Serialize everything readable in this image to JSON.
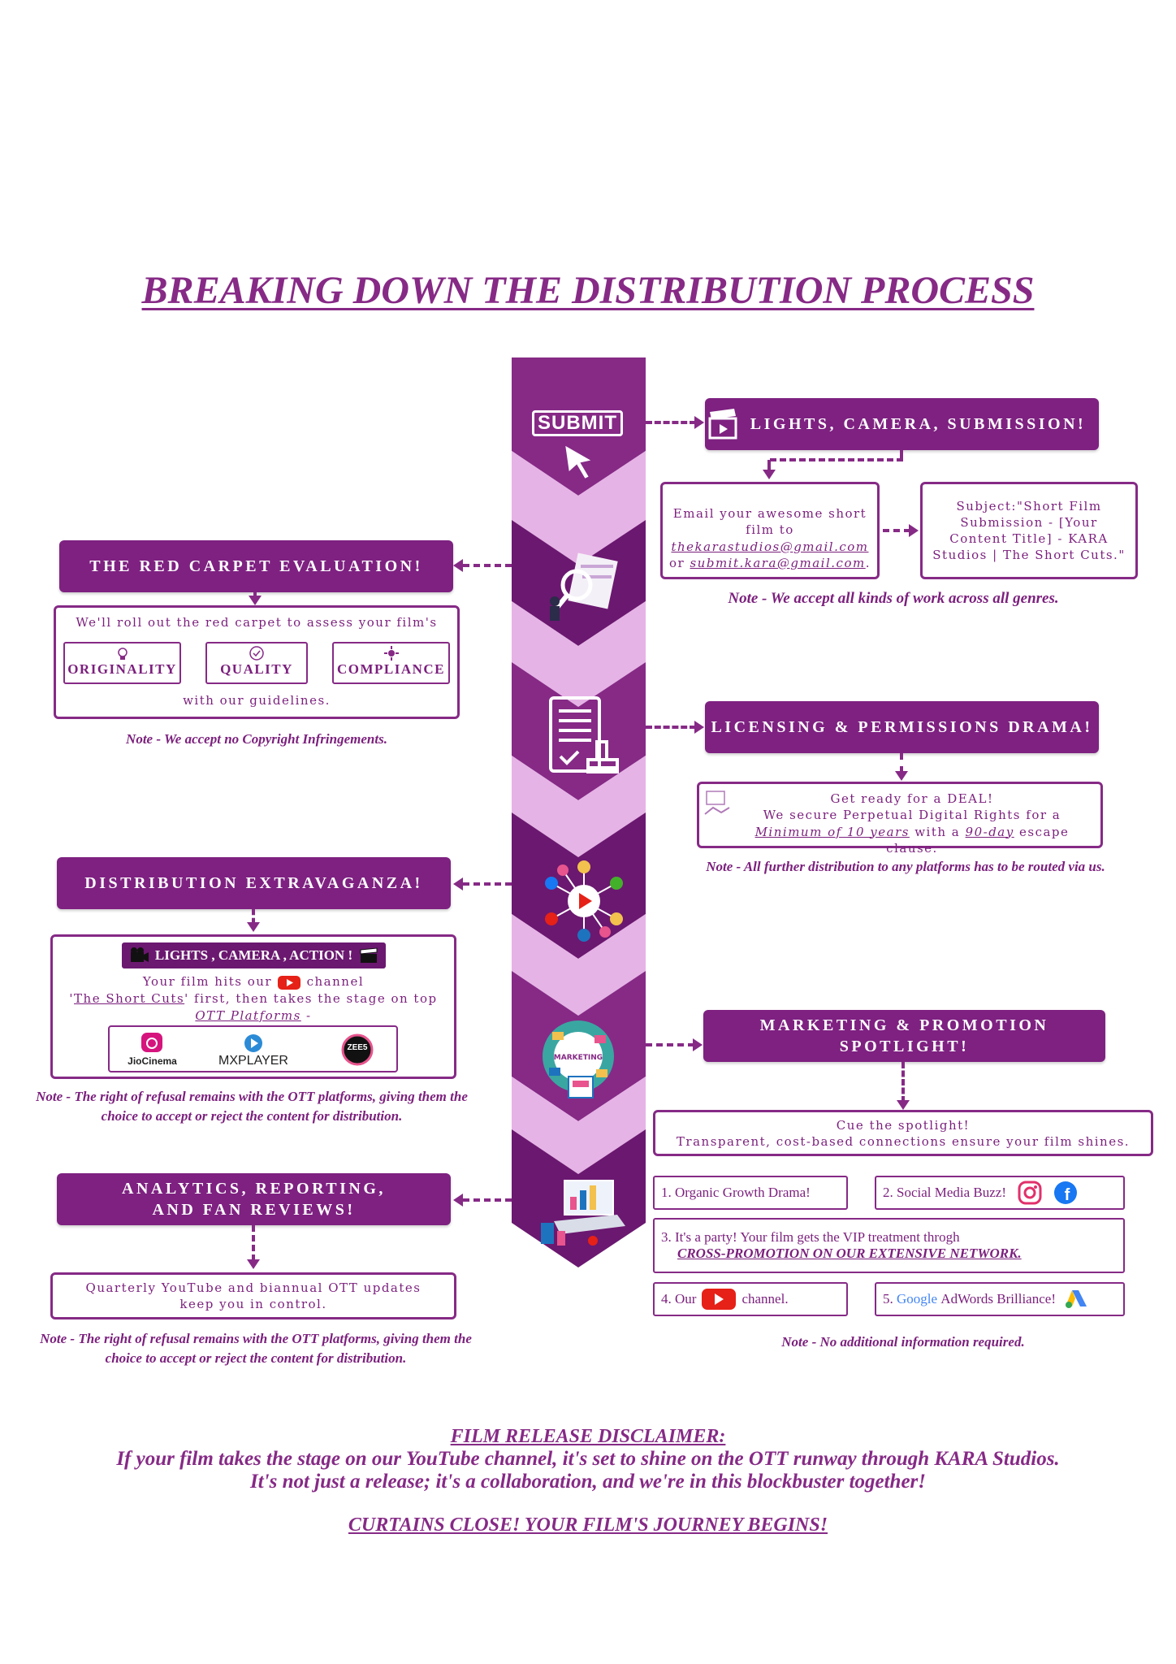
{
  "title": "BREAKING DOWN THE DISTRIBUTION PROCESS",
  "submit_label": "SUBMIT",
  "submission": {
    "header": "LIGHTS, CAMERA, SUBMISSION!",
    "email_line1": "Email your awesome short film to",
    "email1": "thekarastudios@gmail.com",
    "email_or": "or",
    "email2": "submit.kara@gmail.com",
    "email_end": ".",
    "subject": "Subject:\"Short Film Submission - [Your Content Title] - KARA Studios | The Short Cuts.\"",
    "note": "Note - We accept all kinds of work across all genres."
  },
  "evaluation": {
    "header": "THE RED CARPET EVALUATION!",
    "intro": "We'll roll out the red carpet to assess your film's",
    "criteria": [
      "ORIGINALITY",
      "QUALITY",
      "COMPLIANCE"
    ],
    "outro": "with our guidelines.",
    "note": "Note -  We accept no Copyright Infringements."
  },
  "licensing": {
    "header": "LICENSING & PERMISSIONS DRAMA!",
    "line1": "Get ready for a DEAL!",
    "line2": "We secure Perpetual Digital Rights for a",
    "min": "Minimum of 10 years",
    "with": "with a",
    "days": "90-day",
    "clause": "escape clause.",
    "note": "Note - All further distribution to any platforms has to be routed via us."
  },
  "distribution": {
    "header": "DISTRIBUTION EXTRAVAGANZA!",
    "banner": "LIGHTS , CAMERA , ACTION !",
    "text1": "Your film hits our",
    "text2": "channel",
    "text3a": "'",
    "channel": "The Short Cuts",
    "text3b": "' first, then takes the stage on top",
    "ott": "OTT Platforms",
    "ott_end": " -",
    "platforms": [
      "JioCinema",
      "MXPLAYER",
      "ZEE5"
    ],
    "note": "Note -  The right of refusal remains with the OTT platforms, giving them the choice to accept or  reject the content for distribution."
  },
  "marketing": {
    "header": "MARKETING & PROMOTION SPOTLIGHT!",
    "badge": "MARKETING",
    "line1": "Cue the spotlight!",
    "line2": "Transparent, cost-based connections ensure your film shines.",
    "item1": "1.  Organic Growth Drama!",
    "item2": "2. Social Media Buzz!",
    "item3a": "3. It's a party! Your film gets the VIP treatment throgh",
    "item3b": "CROSS-PROMOTION ON OUR EXTENSIVE NETWORK.",
    "item4a": "4. Our",
    "item4b": "channel.",
    "item5a": "5.",
    "item5g": "Google",
    "item5b": "AdWords Brilliance!",
    "item5logo": "Google Ads",
    "note": "Note - No additional information  required."
  },
  "analytics": {
    "header": "ANALYTICS, REPORTING, AND FAN REVIEWS!",
    "text": "Quarterly YouTube and biannual OTT updates keep you in control.",
    "note": "Note -  The right of refusal remains with the OTT platforms, giving them the choice to accept or  reject the content for distribution."
  },
  "disclaimer": {
    "heading": "FILM RELEASE DISCLAIMER:",
    "line1": "If your film takes the stage on our YouTube channel, it's set to shine on the OTT runway through KARA Studios.",
    "line2": "It's not just a release; it's a collaboration, and we're in this blockbuster together!",
    "closing": "CURTAINS CLOSE! YOUR FILM'S JOURNEY BEGINS!"
  },
  "colors": {
    "primary": "#7e2181",
    "light": "#e6b3e6",
    "dark": "#6b1870",
    "youtube_red": "#e62117"
  },
  "icons": [
    "cursor-icon",
    "magnifier-icon",
    "document-stamp-icon",
    "social-hub-icon",
    "marketing-globe-icon",
    "analytics-laptop-icon",
    "clapperboard-icon",
    "email-icon",
    "bulb-icon",
    "check-badge-icon",
    "gear-icon",
    "handshake-icon",
    "youtube-icon",
    "instagram-icon",
    "facebook-icon",
    "google-ads-icon"
  ]
}
